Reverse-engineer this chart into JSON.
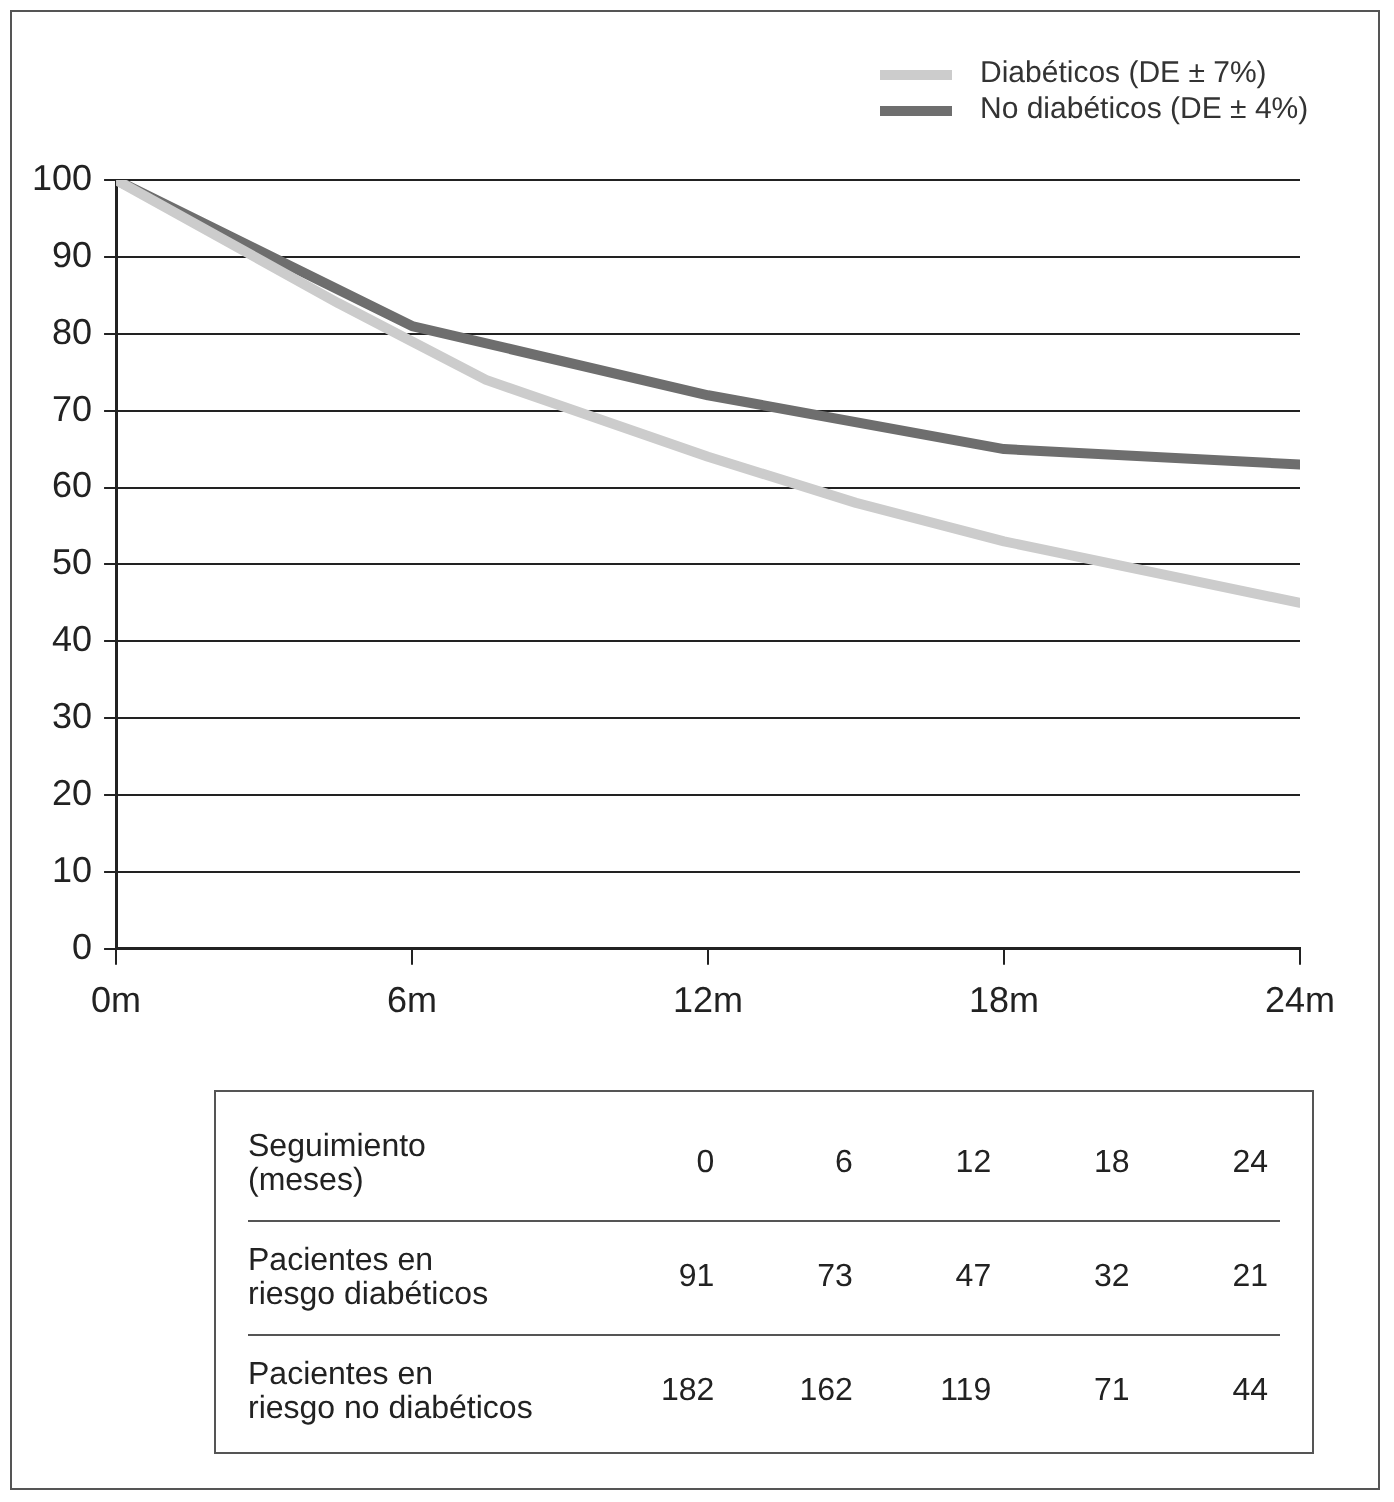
{
  "chart_data": {
    "type": "line",
    "series": [
      {
        "name": "Diabéticos (DE ± 7%)",
        "color": "#cccccc",
        "x": [
          0,
          4.5,
          6,
          7.5,
          12,
          15,
          18,
          21,
          24
        ],
        "values": [
          100,
          84,
          79,
          74,
          64,
          58,
          53,
          49,
          45
        ]
      },
      {
        "name": "No diabéticos (DE ± 4%)",
        "color": "#6e6e6e",
        "x": [
          0,
          6,
          12,
          18,
          24
        ],
        "values": [
          100,
          81,
          72,
          65,
          63
        ]
      }
    ],
    "xlim": [
      0,
      24
    ],
    "xticks": [
      {
        "value": 0,
        "label": "0m"
      },
      {
        "value": 6,
        "label": "6m"
      },
      {
        "value": 12,
        "label": "12m"
      },
      {
        "value": 18,
        "label": "18m"
      },
      {
        "value": 24,
        "label": "24m"
      }
    ],
    "ylim": [
      0,
      100
    ],
    "yticks": [
      0,
      10,
      20,
      30,
      40,
      50,
      60,
      70,
      80,
      90,
      100
    ],
    "grid": "y",
    "legend": "top right",
    "marker": "none",
    "line_style": "solid",
    "annotations": [
      "Seguimiento\n(meses)",
      "0",
      "6",
      "12",
      "18",
      "24",
      "Pacientes en\nriesgo diabéticos",
      "91",
      "73",
      "47",
      "32",
      "21",
      "Pacientes en\nriesgo no diabéticos",
      "182",
      "162",
      "119",
      "71",
      "44"
    ]
  }
}
